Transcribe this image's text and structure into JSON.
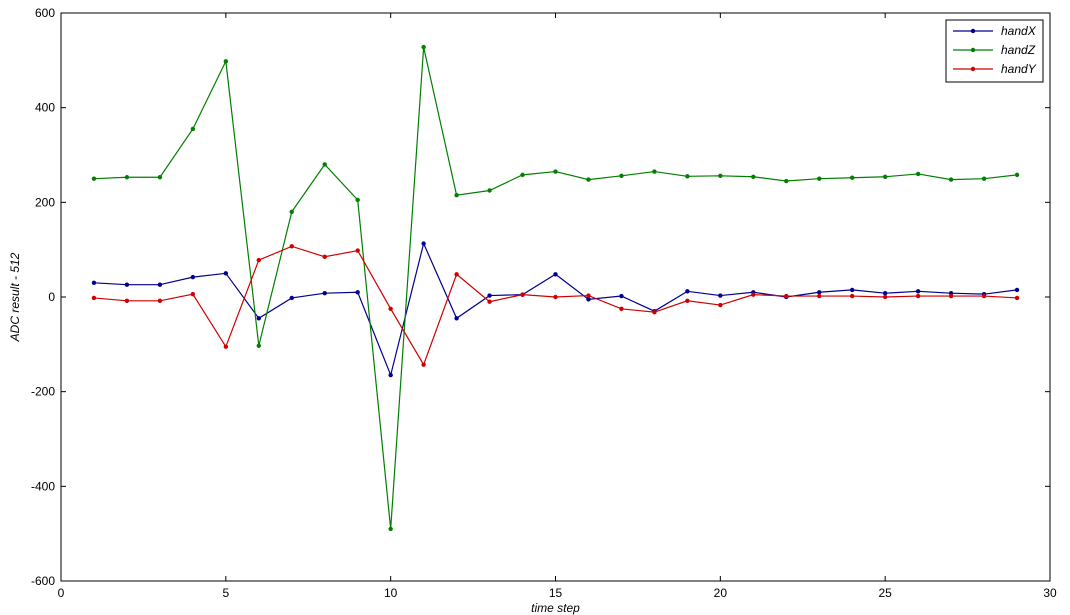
{
  "chart_data": {
    "type": "line",
    "title": "",
    "xlabel": "time step",
    "ylabel": "ADC result - 512",
    "xlim": [
      0,
      30
    ],
    "ylim": [
      -600,
      600
    ],
    "xticks": [
      0,
      5,
      10,
      15,
      20,
      25,
      30
    ],
    "yticks": [
      -600,
      -400,
      -200,
      0,
      200,
      400,
      600
    ],
    "grid": false,
    "legend_position": "top-right",
    "x": [
      1,
      2,
      3,
      4,
      5,
      6,
      7,
      8,
      9,
      10,
      11,
      12,
      13,
      14,
      15,
      16,
      17,
      18,
      19,
      20,
      21,
      22,
      23,
      24,
      25,
      26,
      27,
      28,
      29
    ],
    "series": [
      {
        "name": "handX",
        "color": "#00008f",
        "values": [
          30,
          26,
          26,
          42,
          50,
          -45,
          -2,
          8,
          10,
          -165,
          113,
          -45,
          3,
          5,
          48,
          -5,
          2,
          -30,
          12,
          3,
          10,
          0,
          10,
          15,
          8,
          12,
          8,
          6,
          15
        ]
      },
      {
        "name": "handZ",
        "color": "#007f00",
        "values": [
          250,
          253,
          253,
          355,
          498,
          -103,
          180,
          280,
          205,
          -490,
          528,
          215,
          225,
          258,
          265,
          248,
          256,
          265,
          255,
          256,
          254,
          245,
          250,
          252,
          254,
          260,
          248,
          250,
          258
        ]
      },
      {
        "name": "handY",
        "color": "#d00000",
        "values": [
          -2,
          -8,
          -8,
          6,
          -105,
          78,
          107,
          85,
          98,
          -25,
          -143,
          48,
          -10,
          5,
          0,
          3,
          -25,
          -32,
          -8,
          -17,
          5,
          2,
          2,
          2,
          0,
          2,
          2,
          2,
          -2
        ]
      }
    ]
  }
}
